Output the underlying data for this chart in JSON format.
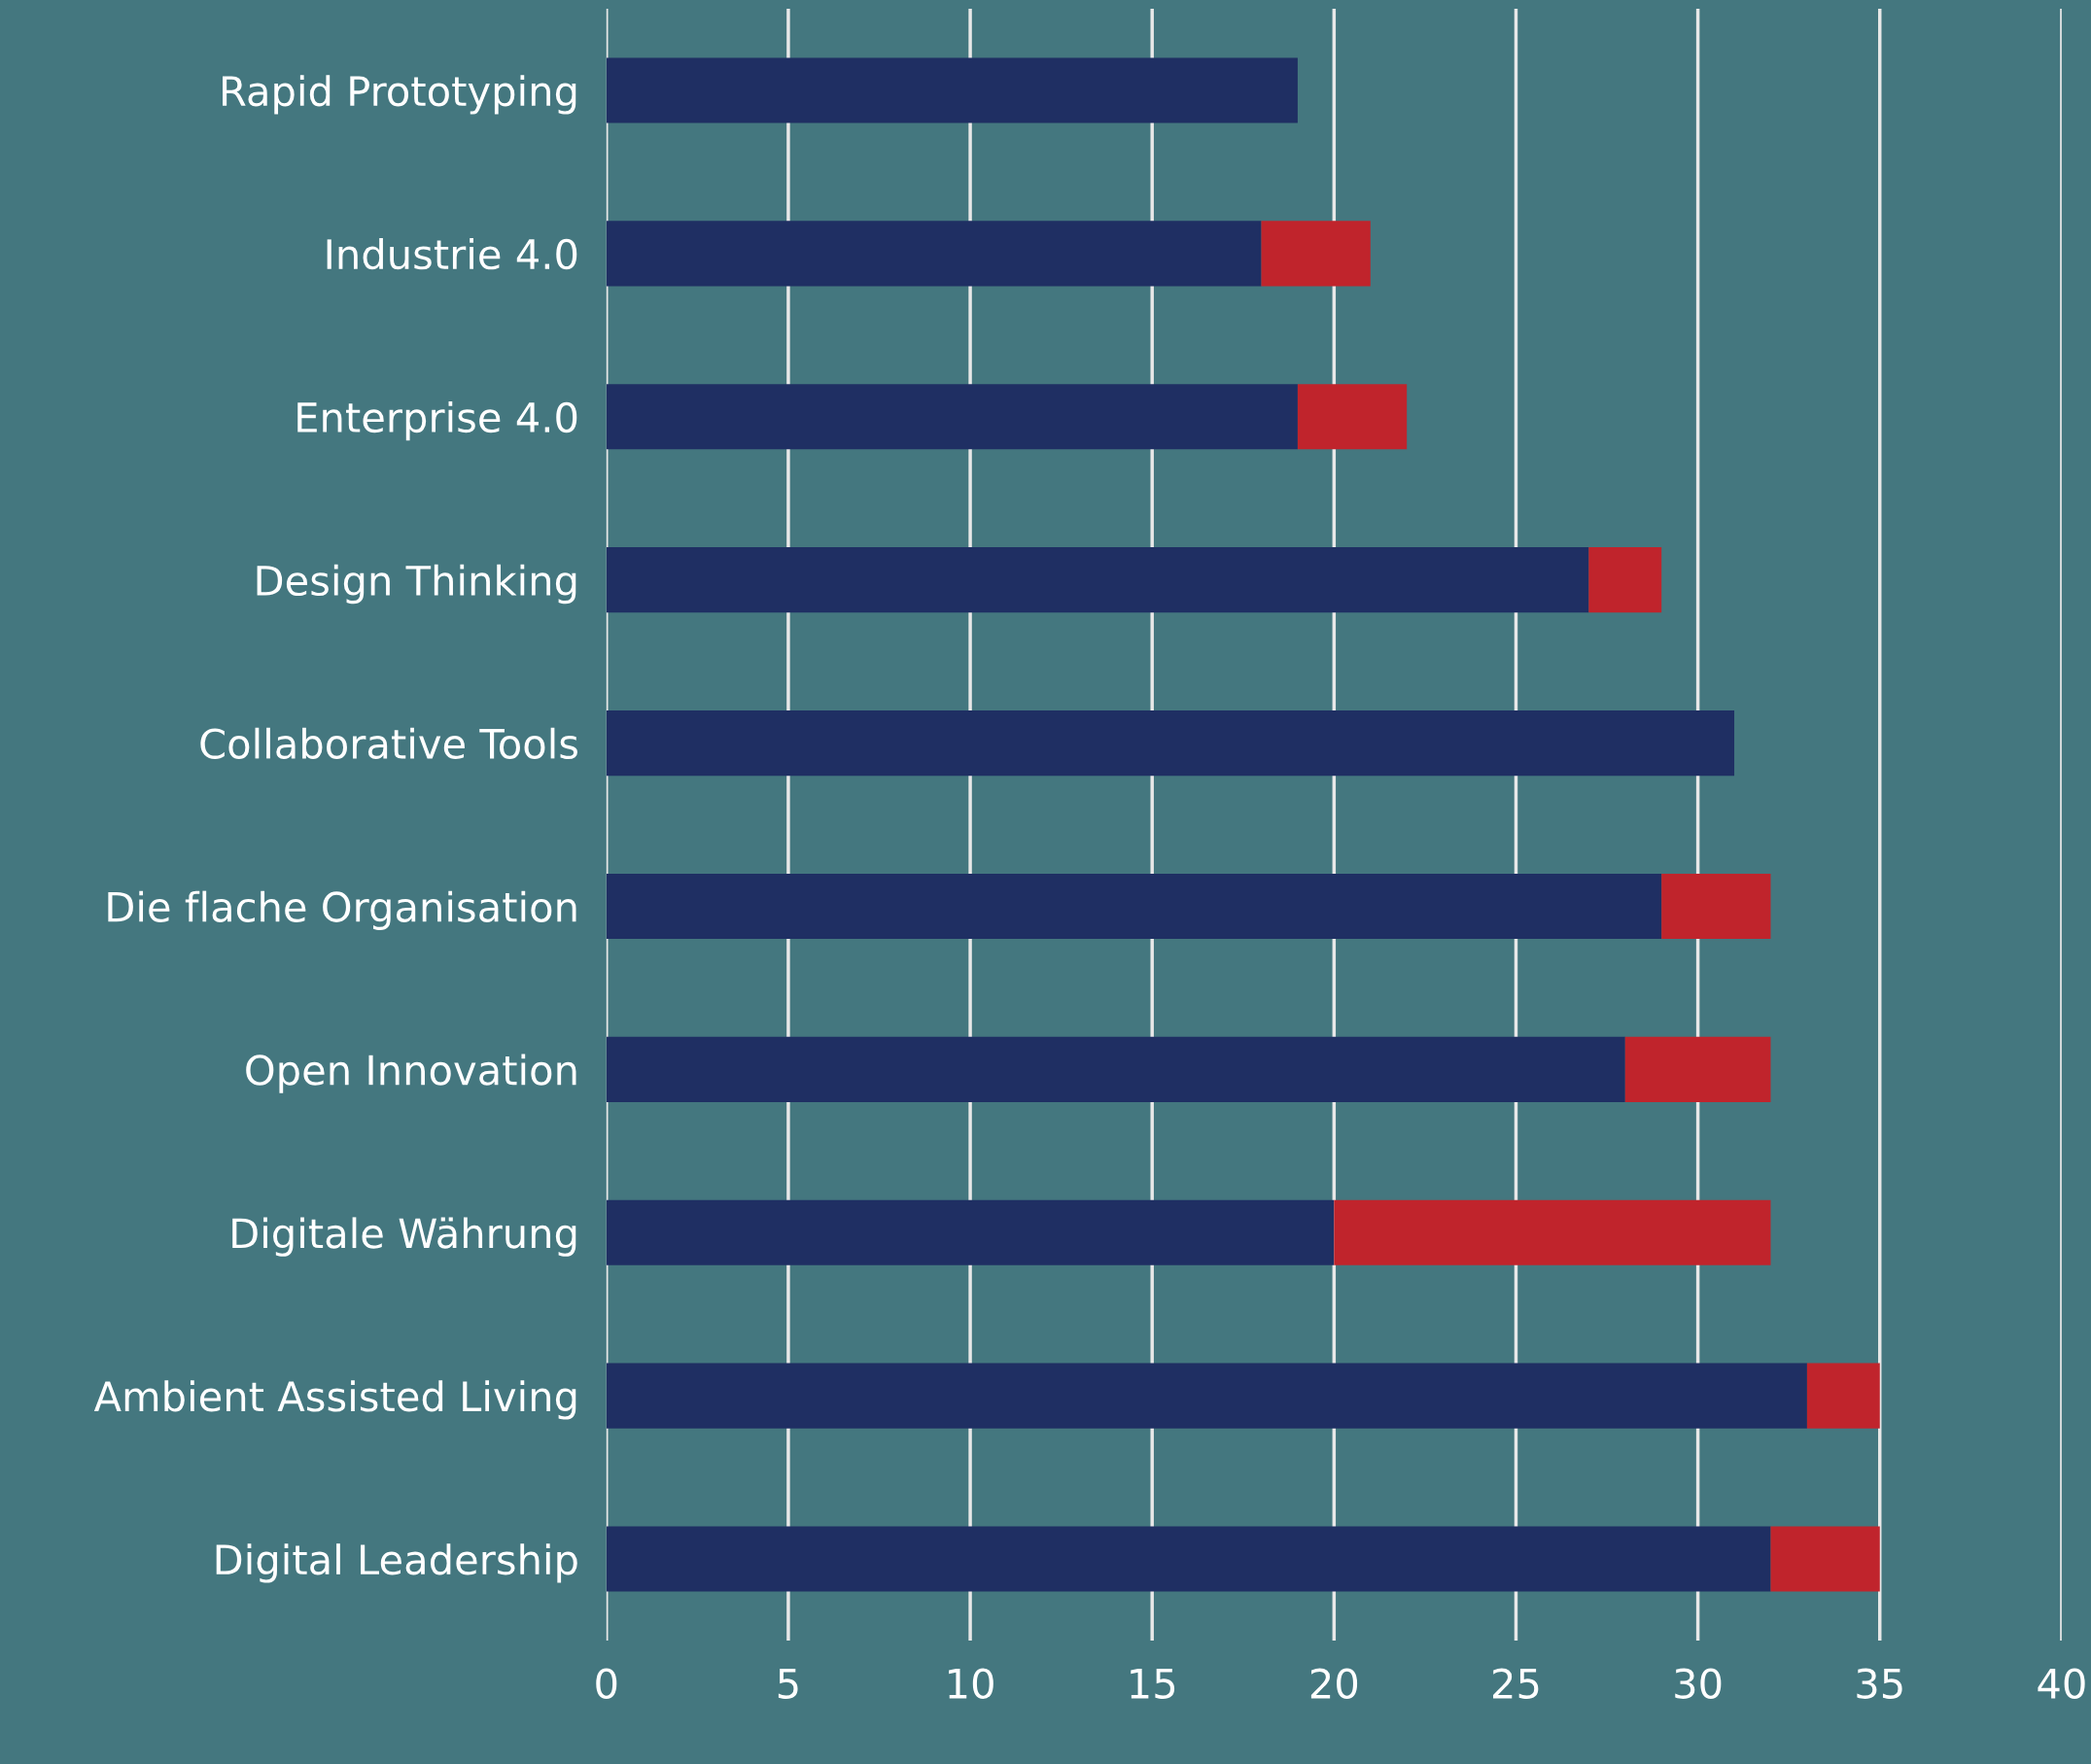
{
  "chart_data": {
    "type": "bar",
    "orientation": "horizontal",
    "stacked": true,
    "categories": [
      "Rapid Prototyping",
      "Industrie 4.0",
      "Enterprise 4.0",
      "Design Thinking",
      "Collaborative Tools",
      "Die flache Organisation",
      "Open Innovation",
      "Digitale Währung",
      "Ambient Assisted Living",
      "Digital Leadership"
    ],
    "series": [
      {
        "color": "#1f2f63",
        "values": [
          19,
          18,
          19,
          27,
          31,
          29,
          28,
          20,
          33,
          32
        ]
      },
      {
        "color": "#c0242c",
        "values": [
          null,
          3,
          3,
          2,
          null,
          3,
          4,
          12,
          2,
          3
        ]
      }
    ],
    "xlim": [
      0,
      40
    ],
    "xticks": [
      0,
      5,
      10,
      15,
      20,
      25,
      30,
      35,
      40
    ],
    "grid": "x",
    "legend": false
  }
}
